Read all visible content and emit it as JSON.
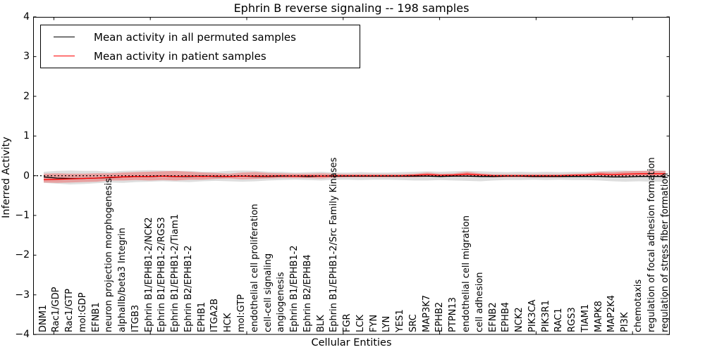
{
  "chart_data": {
    "type": "line",
    "title": "Ephrin B reverse signaling -- 198 samples",
    "xlabel": "Cellular Entities",
    "ylabel": "Inferred Activity",
    "ylim": [
      -4,
      4
    ],
    "ytick_labels": [
      "4",
      "3",
      "2",
      "1",
      "0",
      "−1",
      "−2",
      "−3",
      "−4"
    ],
    "ytick_values": [
      4,
      3,
      2,
      1,
      0,
      -1,
      -2,
      -3,
      -4
    ],
    "grid": false,
    "legend_position": "upper left",
    "reference_line": {
      "value": 0,
      "style": "dashed",
      "color": "#000000"
    },
    "categories": [
      "DNM1",
      "Rac1/GDP",
      "Rac1/GTP",
      "mol:GDP",
      "EFNB1",
      "neuron projection morphogenesis",
      "alphaIIb/beta3 Integrin",
      "ITGB3",
      "Ephrin B1/EPHB1-2/NCK2",
      "Ephrin B1/EPHB1-2/RGS3",
      "Ephrin B1/EPHB1-2/Tiam1",
      "Ephrin B2/EPHB1-2",
      "EPHB1",
      "ITGA2B",
      "HCK",
      "mol:GTP",
      "endothelial cell proliferation",
      "cell-cell signaling",
      "angiogenesis",
      "Ephrin B1/EPHB1-2",
      "Ephrin B2/EPHB4",
      "BLK",
      "Ephrin B1/EPHB1-2/Src Family Kinases",
      "FGR",
      "LCK",
      "FYN",
      "LYN",
      "YES1",
      "SRC",
      "MAP3K7",
      "EPHB2",
      "PTPN13",
      "endothelial cell migration",
      "cell adhesion",
      "EFNB2",
      "EPHB4",
      "NCK2",
      "PIK3CA",
      "PIK3R1",
      "RAC1",
      "RGS3",
      "TIAM1",
      "MAPK8",
      "MAP2K4",
      "PI3K",
      "chemotaxis",
      "regulation of focal adhesion formation",
      "regulation of stress fiber formation"
    ],
    "series": [
      {
        "name": "Mean activity in all permuted samples",
        "color": "#000000",
        "style": "solid",
        "values": [
          -0.03,
          -0.06,
          -0.07,
          -0.07,
          -0.06,
          -0.05,
          -0.03,
          -0.02,
          -0.02,
          -0.01,
          -0.02,
          -0.02,
          -0.01,
          -0.02,
          -0.02,
          -0.01,
          -0.02,
          -0.02,
          -0.01,
          -0.01,
          -0.02,
          -0.01,
          -0.01,
          -0.01,
          -0.01,
          -0.01,
          -0.01,
          -0.01,
          -0.01,
          -0.01,
          -0.02,
          -0.01,
          -0.01,
          -0.02,
          -0.02,
          -0.01,
          -0.01,
          -0.02,
          -0.02,
          -0.02,
          -0.02,
          -0.02,
          -0.02,
          -0.03,
          -0.03,
          -0.02,
          -0.02,
          -0.02
        ]
      },
      {
        "name": "Mean activity in patient samples",
        "color": "#ff0000",
        "style": "solid",
        "values": [
          -0.1,
          -0.09,
          -0.08,
          -0.07,
          -0.06,
          -0.04,
          -0.03,
          -0.02,
          -0.02,
          -0.01,
          -0.02,
          -0.01,
          -0.02,
          -0.01,
          -0.02,
          -0.01,
          -0.01,
          -0.01,
          0.0,
          -0.01,
          0.0,
          -0.01,
          0.0,
          0.0,
          0.0,
          0.0,
          0.0,
          0.0,
          0.01,
          0.03,
          0.01,
          0.02,
          0.04,
          0.02,
          0.0,
          0.0,
          0.0,
          0.0,
          0.0,
          0.0,
          0.01,
          0.02,
          0.04,
          0.03,
          0.04,
          0.05,
          0.05,
          0.05
        ]
      }
    ],
    "bands": [
      {
        "name": "permuted samples spread",
        "color": "#999999",
        "opacity": 0.32,
        "upper": [
          0.1,
          0.12,
          0.13,
          0.12,
          0.12,
          0.1,
          0.12,
          0.13,
          0.14,
          0.13,
          0.12,
          0.12,
          0.1,
          0.1,
          0.12,
          0.13,
          0.12,
          0.1,
          0.1,
          0.08,
          0.09,
          0.1,
          0.08,
          0.08,
          0.09,
          0.08,
          0.08,
          0.09,
          0.1,
          0.11,
          0.1,
          0.11,
          0.12,
          0.11,
          0.1,
          0.09,
          0.1,
          0.09,
          0.1,
          0.09,
          0.1,
          0.1,
          0.11,
          0.13,
          0.13,
          0.12,
          0.13,
          0.13
        ],
        "lower": [
          -0.18,
          -0.2,
          -0.22,
          -0.21,
          -0.19,
          -0.17,
          -0.18,
          -0.16,
          -0.15,
          -0.14,
          -0.15,
          -0.16,
          -0.14,
          -0.13,
          -0.14,
          -0.15,
          -0.14,
          -0.12,
          -0.11,
          -0.1,
          -0.11,
          -0.12,
          -0.1,
          -0.1,
          -0.11,
          -0.1,
          -0.1,
          -0.11,
          -0.12,
          -0.12,
          -0.11,
          -0.12,
          -0.13,
          -0.14,
          -0.12,
          -0.11,
          -0.11,
          -0.1,
          -0.11,
          -0.1,
          -0.11,
          -0.11,
          -0.12,
          -0.14,
          -0.15,
          -0.14,
          -0.15,
          -0.15
        ]
      },
      {
        "name": "patient samples spread",
        "color": "#ff0000",
        "opacity": 0.28,
        "upper": [
          0.05,
          0.06,
          0.05,
          0.05,
          0.06,
          0.06,
          0.08,
          0.09,
          0.1,
          0.11,
          0.12,
          0.1,
          0.08,
          0.07,
          0.05,
          0.08,
          0.09,
          0.07,
          0.06,
          0.05,
          0.05,
          0.06,
          0.05,
          0.04,
          0.04,
          0.04,
          0.04,
          0.04,
          0.05,
          0.08,
          0.05,
          0.06,
          0.1,
          0.06,
          0.04,
          0.04,
          0.04,
          0.04,
          0.04,
          0.04,
          0.05,
          0.06,
          0.1,
          0.09,
          0.11,
          0.12,
          0.12,
          0.12
        ],
        "lower": [
          -0.17,
          -0.18,
          -0.17,
          -0.16,
          -0.15,
          -0.12,
          -0.12,
          -0.11,
          -0.12,
          -0.11,
          -0.12,
          -0.1,
          -0.1,
          -0.08,
          -0.07,
          -0.09,
          -0.08,
          -0.07,
          -0.06,
          -0.06,
          -0.06,
          -0.07,
          -0.05,
          -0.04,
          -0.04,
          -0.04,
          -0.04,
          -0.04,
          -0.04,
          -0.03,
          -0.03,
          -0.03,
          -0.03,
          -0.03,
          -0.04,
          -0.04,
          -0.04,
          -0.04,
          -0.04,
          -0.04,
          -0.03,
          -0.02,
          -0.02,
          -0.02,
          -0.02,
          -0.02,
          -0.02,
          -0.02
        ]
      }
    ]
  }
}
